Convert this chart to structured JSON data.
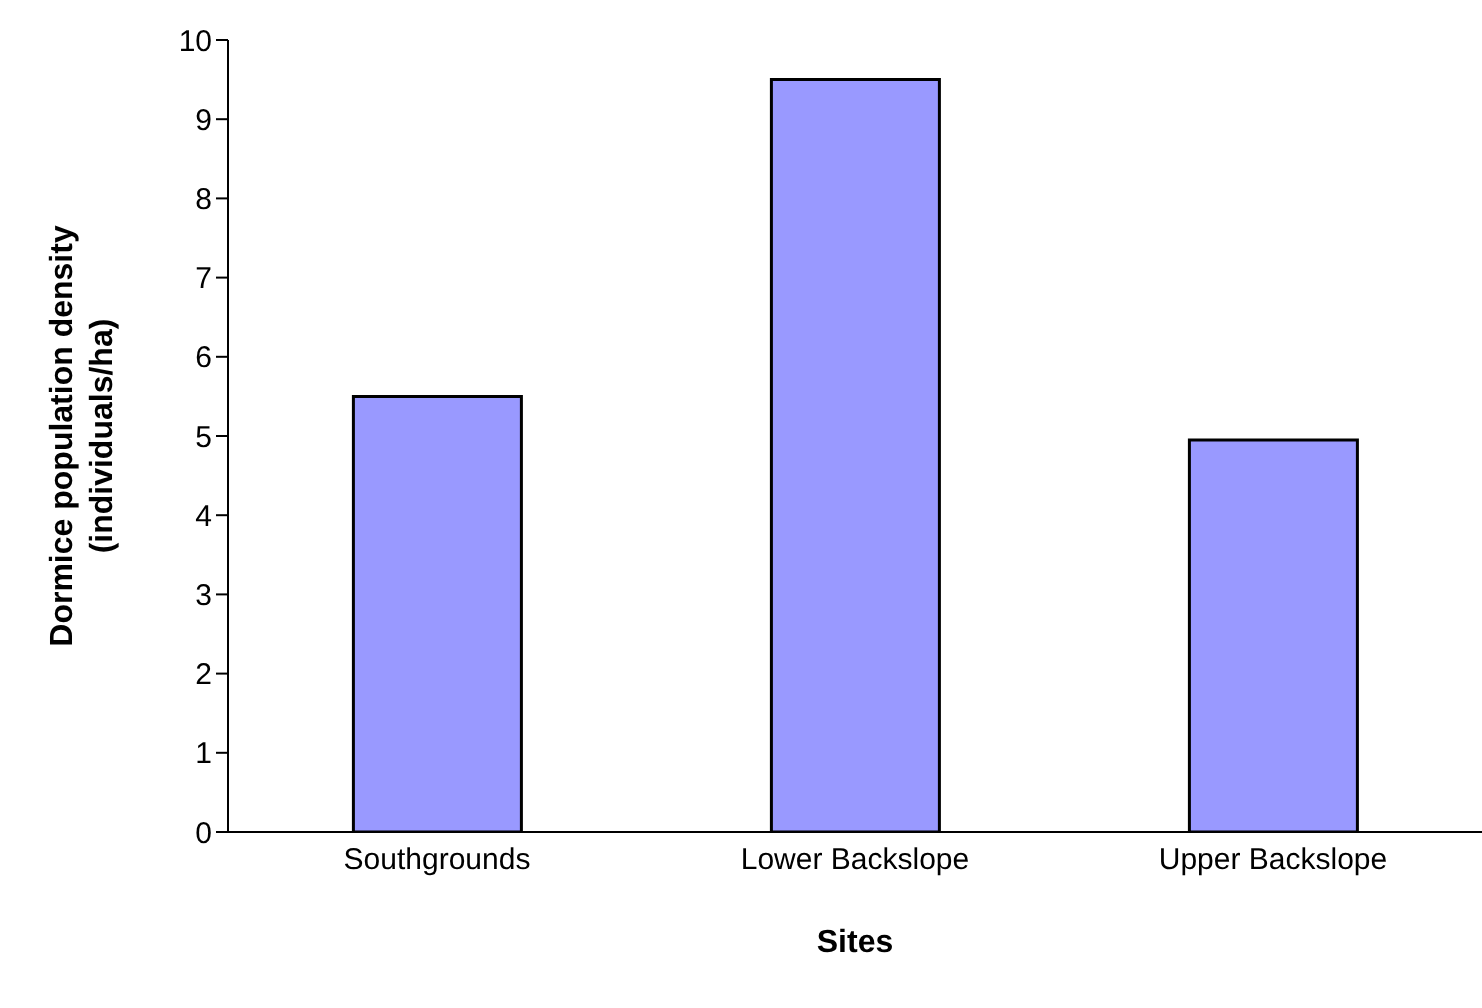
{
  "chart_data": {
    "type": "bar",
    "xlabel": "Sites",
    "ylabel": "Dormice population density\n(individuals/ha)",
    "categories": [
      "Southgrounds",
      "Lower Backslope",
      "Upper Backslope"
    ],
    "values": [
      5.5,
      9.5,
      4.95
    ],
    "color": "#9999ff",
    "ylim": [
      0,
      10
    ],
    "yticks": [
      0,
      1,
      2,
      3,
      4,
      5,
      6,
      7,
      8,
      9,
      10
    ],
    "grid": false,
    "legend": false
  }
}
